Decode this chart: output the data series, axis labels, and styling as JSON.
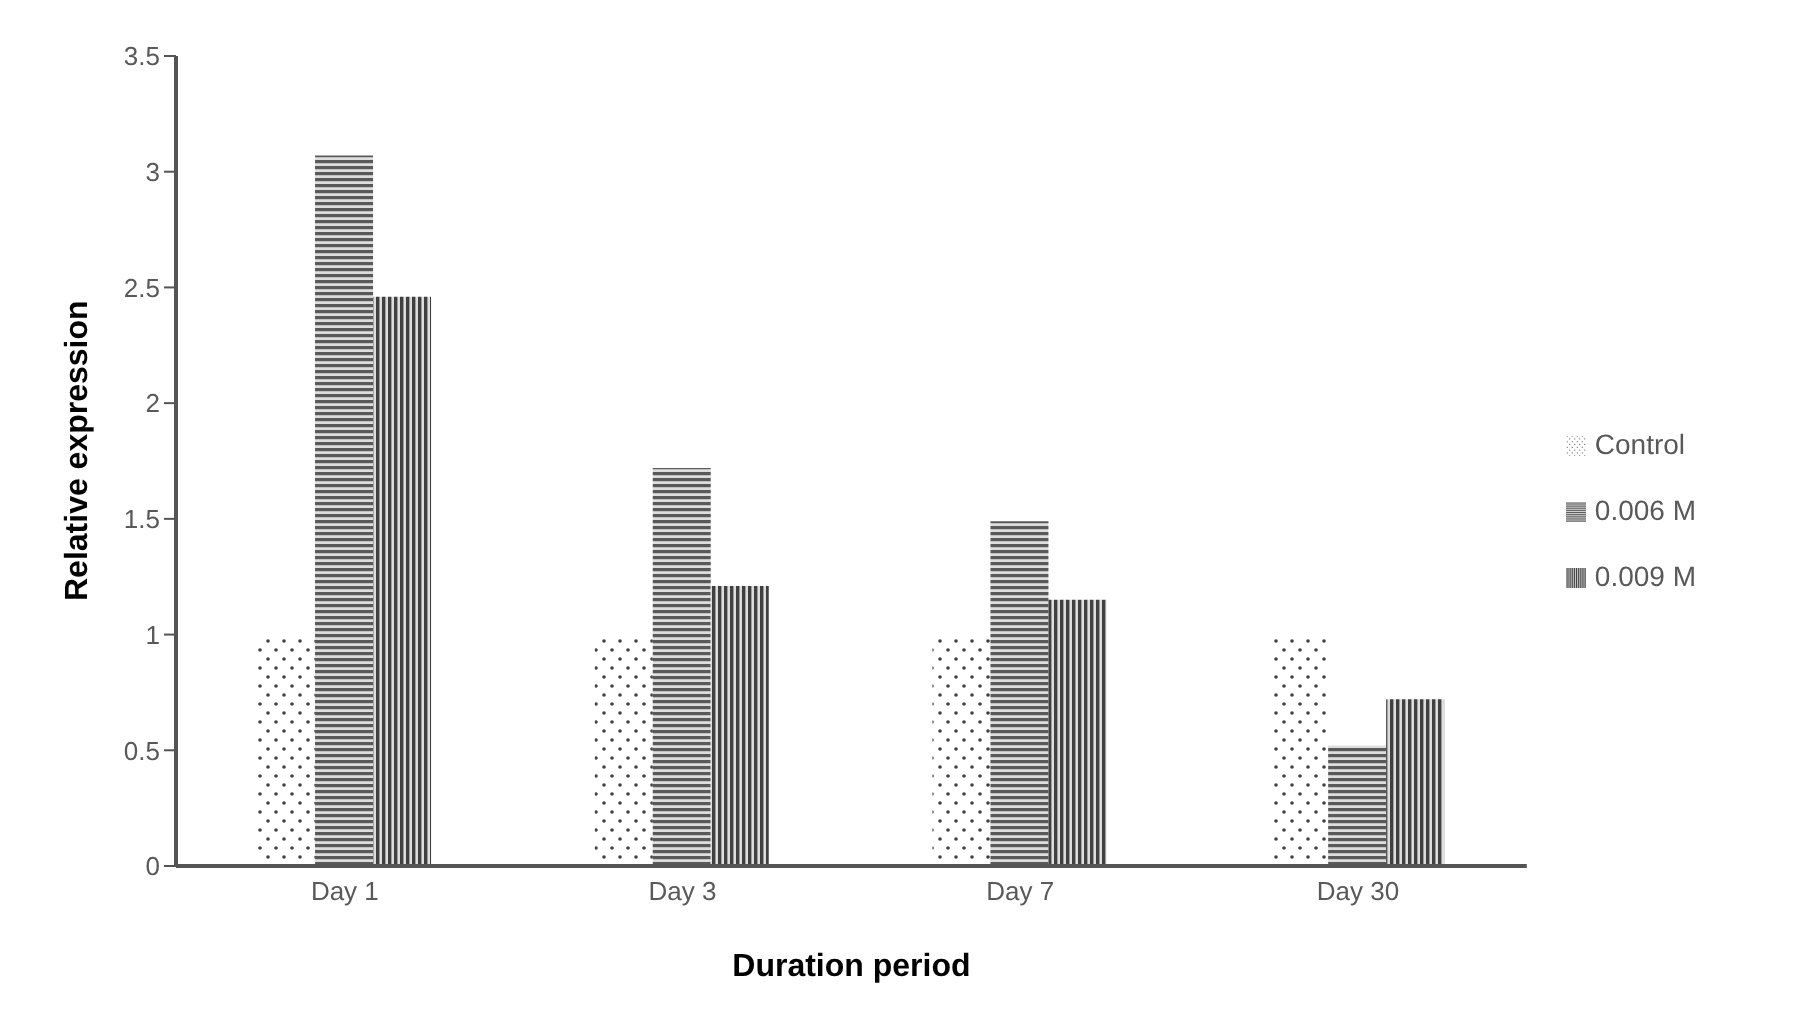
{
  "chart_data": {
    "type": "bar",
    "xlabel": "Duration period",
    "ylabel": "Relative expression",
    "categories": [
      "Day 1",
      "Day 3",
      "Day 7",
      "Day 30"
    ],
    "series": [
      {
        "name": "Control",
        "color": "#404040",
        "values": [
          1,
          1,
          1,
          1
        ]
      },
      {
        "name": "0.006 M",
        "color": "#595959",
        "values": [
          3.07,
          1.72,
          1.49,
          0.52
        ]
      },
      {
        "name": "0.009 M",
        "color": "#404040",
        "values": [
          2.46,
          1.21,
          1.15,
          0.72
        ]
      }
    ],
    "ylim": [
      0,
      3.5
    ],
    "yticks": [
      0,
      0.5,
      1,
      1.5,
      2,
      2.5,
      3,
      3.5
    ],
    "legend": "right"
  }
}
